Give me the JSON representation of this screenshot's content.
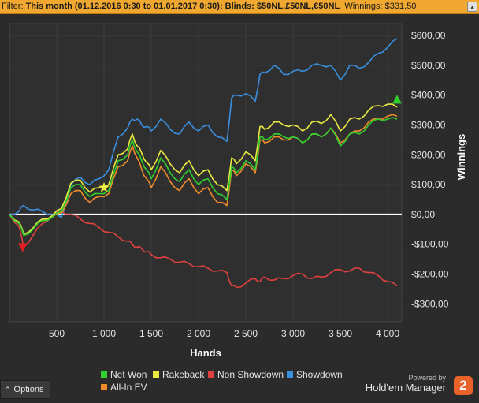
{
  "filter": {
    "label": "Filter:",
    "value": "This month (01.12.2016 0:30 to 01.01.2017 0:30); Blinds: $50NL,£50NL,€50NL",
    "winnings": "Winnings: $331,50",
    "collapse_icon": "chevron-up-icon"
  },
  "options": {
    "label": "Options",
    "icon": "chevron-up-icon"
  },
  "branding": {
    "powered_by": "Powered by",
    "name": "Hold'em Manager",
    "logo_text": "2"
  },
  "colors": {
    "net_won": "#30d030",
    "rakeback": "#e8e840",
    "non_showdown": "#e04040",
    "showdown": "#3a90e0",
    "all_in_ev": "#f08c2a",
    "background": "#2b2b2b",
    "filter_bar": "#f0a830"
  },
  "chart_data": {
    "type": "line",
    "title": "",
    "xlabel": "Hands",
    "ylabel": "Winnings",
    "xlim": [
      0,
      4150
    ],
    "ylim": [
      -360,
      640
    ],
    "grid": true,
    "legend_position": "bottom",
    "x_ticks": [
      500,
      1000,
      1500,
      2000,
      2500,
      3000,
      3500,
      4000
    ],
    "x_tick_labels": [
      "500",
      "1 000",
      "1 500",
      "2 000",
      "2 500",
      "3 000",
      "3 500",
      "4 000"
    ],
    "y_ticks": [
      -300,
      -200,
      -100,
      0,
      100,
      200,
      300,
      400,
      500,
      600
    ],
    "y_tick_labels": [
      "-$300,00",
      "-$200,00",
      "-$100,00",
      "$0,00",
      "$100,00",
      "$200,00",
      "$300,00",
      "$400,00",
      "$500,00",
      "$600,00"
    ],
    "x": [
      0,
      100,
      150,
      250,
      350,
      450,
      550,
      650,
      750,
      850,
      950,
      1050,
      1150,
      1250,
      1300,
      1350,
      1400,
      1450,
      1500,
      1600,
      1700,
      1800,
      1900,
      2000,
      2100,
      2200,
      2300,
      2350,
      2400,
      2500,
      2600,
      2650,
      2700,
      2800,
      2900,
      3000,
      3100,
      3200,
      3300,
      3400,
      3500,
      3600,
      3700,
      3800,
      3900,
      4000,
      4100
    ],
    "series": [
      {
        "name": "Net Won",
        "color": "#30d030",
        "values": [
          0,
          -30,
          -70,
          -50,
          -20,
          -10,
          10,
          90,
          100,
          60,
          70,
          80,
          180,
          200,
          250,
          210,
          180,
          150,
          120,
          190,
          140,
          110,
          150,
          100,
          120,
          70,
          50,
          160,
          140,
          180,
          150,
          260,
          250,
          270,
          260,
          260,
          240,
          270,
          260,
          290,
          230,
          270,
          270,
          300,
          320,
          320,
          320
        ]
      },
      {
        "name": "Rakeback",
        "color": "#e8e840",
        "values": [
          0,
          -25,
          -65,
          -45,
          -15,
          -5,
          20,
          105,
          115,
          75,
          90,
          100,
          200,
          220,
          270,
          230,
          205,
          175,
          150,
          215,
          170,
          140,
          180,
          130,
          150,
          100,
          80,
          190,
          170,
          210,
          180,
          295,
          285,
          310,
          300,
          300,
          280,
          310,
          305,
          335,
          280,
          320,
          320,
          350,
          365,
          370,
          360
        ]
      },
      {
        "name": "Non Showdown",
        "color": "#e04040",
        "values": [
          0,
          -40,
          -110,
          -70,
          -30,
          -5,
          10,
          0,
          -15,
          -30,
          -45,
          -60,
          -75,
          -90,
          -100,
          -110,
          -115,
          -125,
          -135,
          -145,
          -150,
          -160,
          -165,
          -175,
          -180,
          -190,
          -195,
          -240,
          -245,
          -230,
          -215,
          -225,
          -210,
          -220,
          -215,
          -205,
          -200,
          -215,
          -210,
          -195,
          -185,
          -190,
          -180,
          -195,
          -205,
          -225,
          -240
        ]
      },
      {
        "name": "Showdown",
        "color": "#3a90e0",
        "values": [
          0,
          10,
          30,
          15,
          10,
          0,
          -10,
          100,
          125,
          100,
          120,
          150,
          260,
          290,
          320,
          320,
          300,
          295,
          280,
          320,
          285,
          270,
          310,
          280,
          300,
          260,
          245,
          390,
          400,
          405,
          380,
          470,
          475,
          500,
          470,
          480,
          480,
          500,
          500,
          500,
          450,
          500,
          490,
          510,
          540,
          560,
          590
        ]
      },
      {
        "name": "All-In EV",
        "color": "#f08c2a",
        "values": [
          0,
          -30,
          -70,
          -50,
          -20,
          -10,
          5,
          70,
          80,
          40,
          60,
          70,
          160,
          180,
          230,
          190,
          150,
          120,
          90,
          160,
          110,
          80,
          120,
          70,
          90,
          40,
          30,
          150,
          130,
          170,
          140,
          250,
          240,
          260,
          250,
          260,
          240,
          270,
          260,
          290,
          240,
          270,
          280,
          310,
          320,
          330,
          330
        ]
      }
    ],
    "markers": [
      {
        "type": "min",
        "shape": "triangle-down",
        "x": 140,
        "y": -110,
        "color": "#e02020"
      },
      {
        "type": "star",
        "shape": "star",
        "x": 1000,
        "y": 90,
        "color": "#f0f040"
      },
      {
        "type": "end",
        "shape": "triangle-up",
        "x": 4100,
        "y": 385,
        "color": "#30d030"
      }
    ]
  }
}
